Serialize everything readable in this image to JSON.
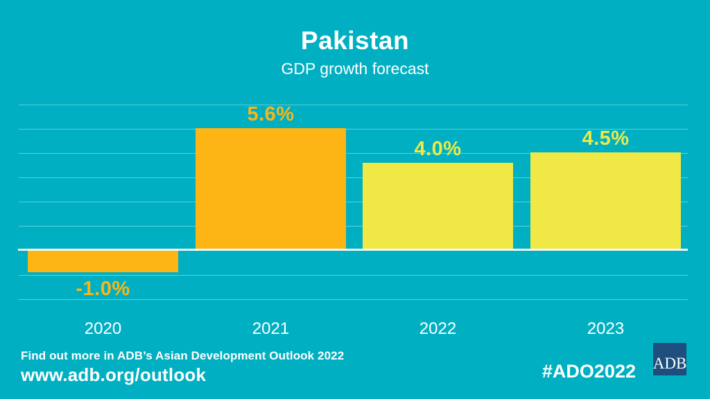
{
  "header": {
    "title": "Pakistan",
    "subtitle": "GDP growth forecast"
  },
  "footer": {
    "find_out_more": "Find out more in ADB’s Asian Development Outlook 2022",
    "url": "www.adb.org/outlook",
    "hashtag": "#ADO2022",
    "logo_text": "ADB"
  },
  "colors": {
    "background": "#00B0C2",
    "orange": "#FDB515",
    "yellow": "#F0E945",
    "logo_navy": "#1E4E7E",
    "text_white": "#FFFFFF",
    "gridline": "rgba(255,255,255,0.38)",
    "baseline": "#F2FAFB"
  },
  "chart_data": {
    "type": "bar",
    "title": "Pakistan",
    "subtitle": "GDP growth forecast",
    "categories": [
      "2020",
      "2021",
      "2022",
      "2023"
    ],
    "values": [
      -1.0,
      5.6,
      4.0,
      4.5
    ],
    "labels": [
      "-1.0%",
      "5.6%",
      "4.0%",
      "4.5%"
    ],
    "bar_colors": [
      "#FDB515",
      "#FDB515",
      "#F0E945",
      "#F0E945"
    ],
    "unit": "percent",
    "xlabel": "",
    "ylabel": "",
    "ylim": [
      -2,
      7
    ],
    "grid": "horizontal",
    "legend": "none"
  }
}
